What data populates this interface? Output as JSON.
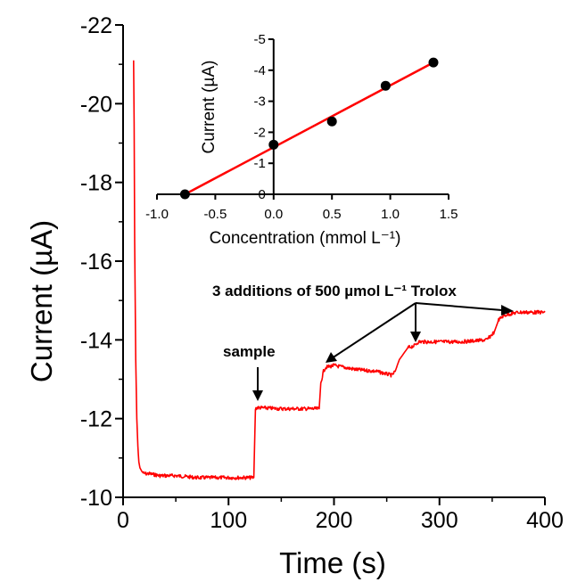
{
  "chart_data": [
    {
      "type": "line",
      "title": "",
      "xlabel": "Time (s)",
      "ylabel": "Current (µA)",
      "xlim": [
        0,
        400
      ],
      "ylim": [
        -10,
        -22
      ],
      "y_axis_inverted": true,
      "grid": false,
      "legend": "none",
      "color": "#ff0000",
      "x_ticks": [
        "0",
        "100",
        "200",
        "300",
        "400"
      ],
      "y_ticks": [
        "-10",
        "-12",
        "-14",
        "-16",
        "-18",
        "-20",
        "-22"
      ],
      "series": [
        {
          "x": [
            10,
            10.5,
            11,
            12,
            13,
            14,
            15,
            16,
            18,
            20,
            25,
            35,
            50,
            70,
            90,
            110,
            124,
            125.5,
            127,
            150,
            170,
            186,
            187.5,
            190,
            192,
            200,
            220,
            240,
            255,
            258,
            262,
            270,
            276,
            278,
            280,
            300,
            320,
            345,
            352,
            356,
            360,
            365,
            375,
            390,
            400
          ],
          "y": [
            -21.1,
            -19.5,
            -16.5,
            -13.5,
            -12.0,
            -11.3,
            -10.9,
            -10.75,
            -10.65,
            -10.6,
            -10.6,
            -10.55,
            -10.55,
            -10.5,
            -10.5,
            -10.5,
            -10.5,
            -12.25,
            -12.28,
            -12.25,
            -12.25,
            -12.25,
            -12.9,
            -13.2,
            -13.3,
            -13.35,
            -13.25,
            -13.2,
            -13.1,
            -13.2,
            -13.5,
            -13.8,
            -13.85,
            -13.9,
            -13.95,
            -13.95,
            -13.95,
            -14.0,
            -14.2,
            -14.5,
            -14.6,
            -14.65,
            -14.7,
            -14.7,
            -14.7
          ]
        }
      ],
      "annotations": {
        "sample": "sample",
        "additions": "3 additions of 500 µmol L⁻¹ Trolox"
      }
    },
    {
      "type": "scatter",
      "title": "",
      "xlabel": "Concentration (mmol L⁻¹)",
      "ylabel": "Current (µA)",
      "xlim": [
        -1.0,
        1.5
      ],
      "ylim": [
        0,
        -5
      ],
      "y_axis_inverted": true,
      "x_ticks": [
        "-1.0",
        "-0.5",
        "0.0",
        "0.5",
        "1.0",
        "1.5"
      ],
      "y_ticks": [
        "0",
        "-1",
        "-2",
        "-3",
        "-4",
        "-5"
      ],
      "points": {
        "x": [
          -0.76,
          0.0,
          0.5,
          0.96,
          1.37
        ],
        "y": [
          0.0,
          -1.6,
          -2.35,
          -3.5,
          -4.25
        ]
      },
      "fit_line": {
        "x": [
          -0.76,
          1.37
        ],
        "y": [
          0.0,
          -4.25
        ],
        "color": "#ff0000"
      }
    }
  ]
}
